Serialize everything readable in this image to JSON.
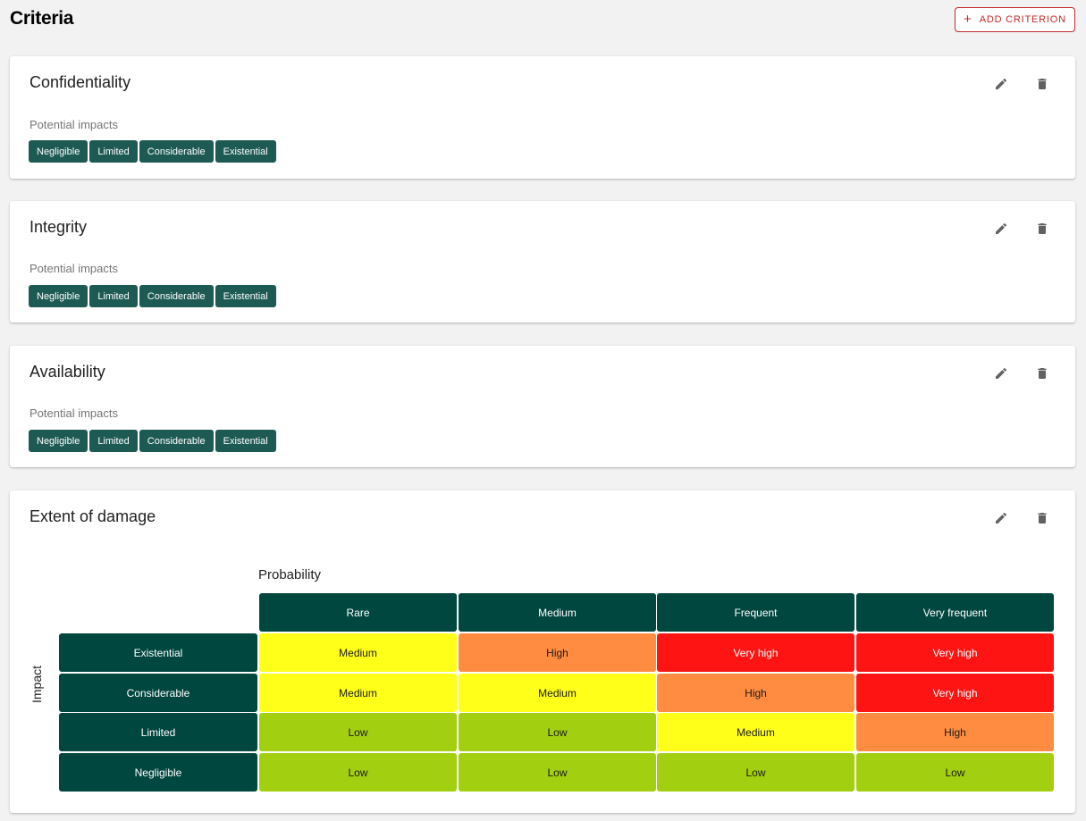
{
  "page": {
    "title": "Criteria",
    "add_button_label": "ADD CRITERION"
  },
  "colors": {
    "header": "#00473f",
    "chip": "#1e5a54",
    "low": "#a3cf11",
    "medium": "#ffff1a",
    "high": "#ff8c40",
    "very_high": "#ff1414",
    "accent": "#c62828"
  },
  "icons": {
    "edit": "pencil-icon",
    "delete": "trash-icon",
    "add": "plus-icon"
  },
  "criteria": [
    {
      "title": "Confidentiality",
      "impacts_label": "Potential impacts",
      "impacts": [
        "Negligible",
        "Limited",
        "Considerable",
        "Existential"
      ]
    },
    {
      "title": "Integrity",
      "impacts_label": "Potential impacts",
      "impacts": [
        "Negligible",
        "Limited",
        "Considerable",
        "Existential"
      ]
    },
    {
      "title": "Availability",
      "impacts_label": "Potential impacts",
      "impacts": [
        "Negligible",
        "Limited",
        "Considerable",
        "Existential"
      ]
    }
  ],
  "matrix_card": {
    "title": "Extent of damage",
    "probability_label": "Probability",
    "impact_label": "Impact",
    "columns": [
      "Rare",
      "Medium",
      "Frequent",
      "Very frequent"
    ],
    "rows": [
      {
        "label": "Existential",
        "cells": [
          "Medium",
          "High",
          "Very high",
          "Very high"
        ]
      },
      {
        "label": "Considerable",
        "cells": [
          "Medium",
          "Medium",
          "High",
          "Very high"
        ]
      },
      {
        "label": "Limited",
        "cells": [
          "Low",
          "Low",
          "Medium",
          "High"
        ]
      },
      {
        "label": "Negligible",
        "cells": [
          "Low",
          "Low",
          "Low",
          "Low"
        ]
      }
    ]
  }
}
